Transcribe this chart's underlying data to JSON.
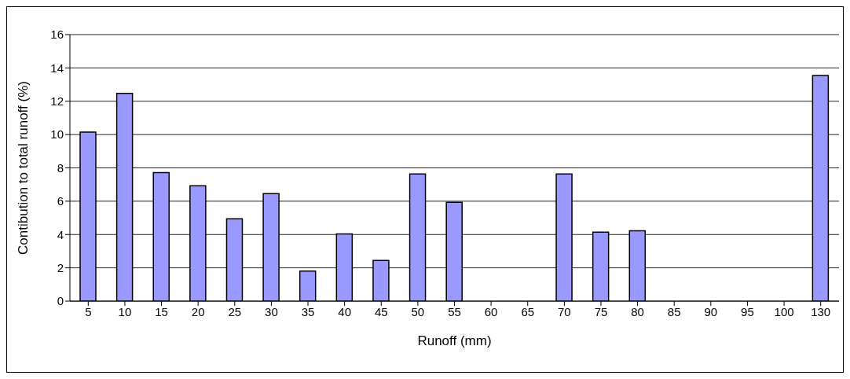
{
  "chart_data": {
    "type": "bar",
    "xlabel": "Runoff (mm)",
    "ylabel": "Contibution to total runoff (%)",
    "categories": [
      "5",
      "10",
      "15",
      "20",
      "25",
      "30",
      "35",
      "40",
      "45",
      "50",
      "55",
      "60",
      "65",
      "70",
      "75",
      "80",
      "85",
      "90",
      "95",
      "100",
      "130"
    ],
    "values": [
      10.15,
      12.47,
      7.72,
      6.93,
      4.94,
      6.46,
      1.81,
      4.04,
      2.44,
      7.64,
      5.93,
      0,
      0,
      7.64,
      4.14,
      4.23,
      0,
      0,
      0,
      0,
      13.54
    ],
    "color": "#9999ff",
    "ylim": [
      0,
      16
    ],
    "yticks": [
      0,
      2,
      4,
      6,
      8,
      10,
      12,
      14,
      16
    ],
    "grid": "y",
    "legend": false
  }
}
